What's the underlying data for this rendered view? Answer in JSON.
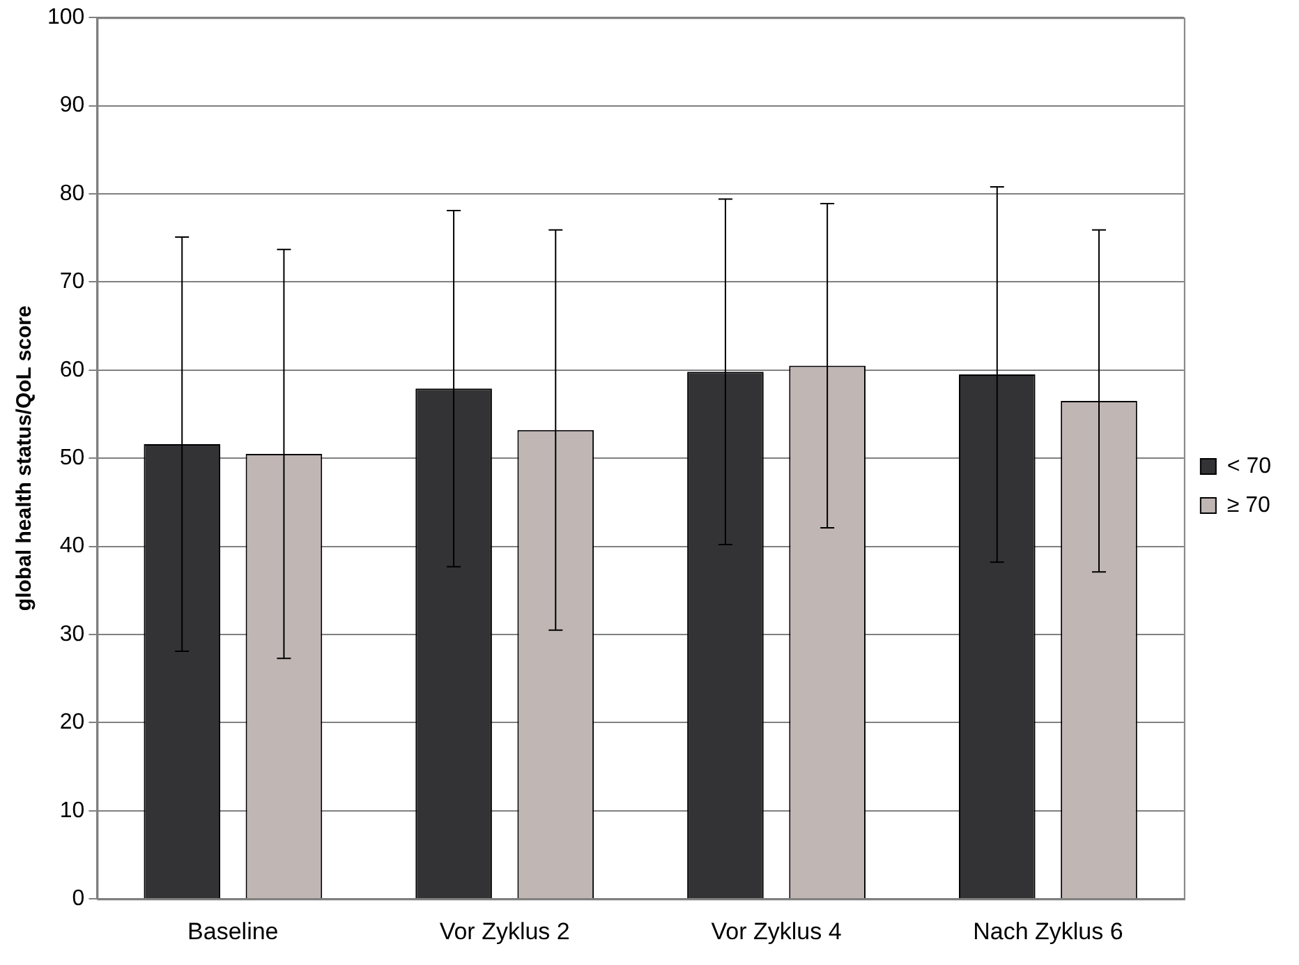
{
  "chart_data": {
    "type": "bar",
    "ylabel": "global health status/QoL score",
    "categories": [
      "Baseline",
      "Vor Zyklus 2",
      "Vor Zyklus 4",
      "Nach Zyklus 6"
    ],
    "series": [
      {
        "name": "< 70",
        "color": "#333336",
        "values": [
          51.6,
          57.9,
          59.8,
          59.5
        ],
        "errors": [
          23.5,
          20.2,
          19.6,
          21.3
        ]
      },
      {
        "name": "≥ 70",
        "color": "#c0b6b4",
        "values": [
          50.5,
          53.2,
          60.5,
          56.5
        ],
        "errors": [
          23.2,
          22.7,
          18.4,
          19.4
        ]
      }
    ],
    "ylim": [
      0,
      100
    ],
    "yticks": [
      0,
      10,
      20,
      30,
      40,
      50,
      60,
      70,
      80,
      90,
      100
    ],
    "grid": "y",
    "legend": "right"
  }
}
